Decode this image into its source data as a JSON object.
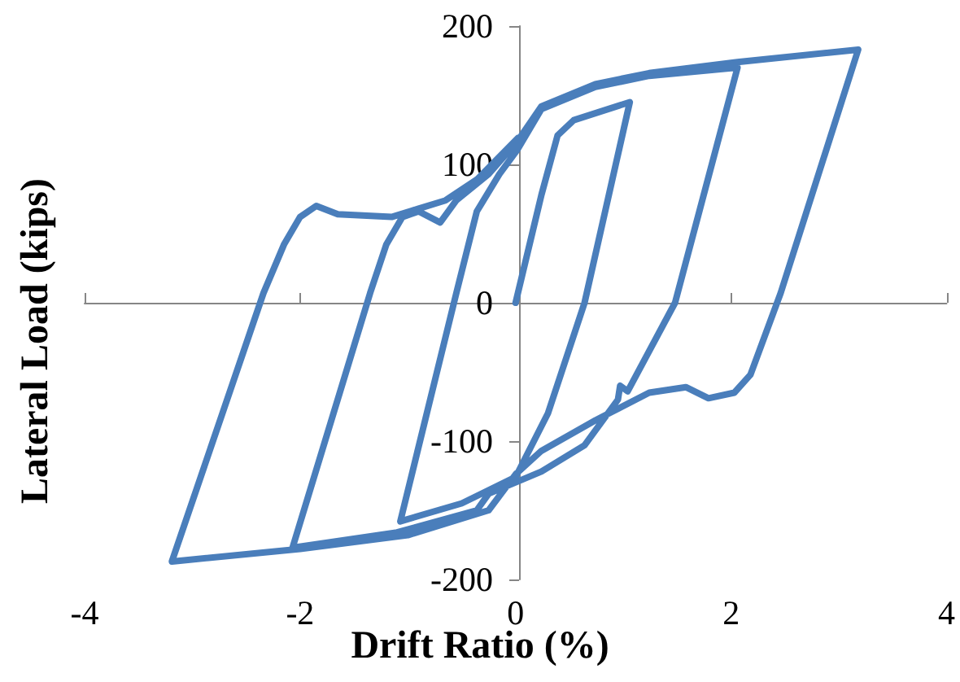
{
  "chart_data": {
    "type": "line",
    "xlabel": "Drift Ratio (%)",
    "ylabel": "Lateral Load (kips)",
    "xlim": [
      -4,
      4
    ],
    "xticks": [
      -4,
      -2,
      0,
      2,
      4
    ],
    "ylim": [
      -200,
      200
    ],
    "yticks": [
      -200,
      -100,
      0,
      100,
      200
    ],
    "marker": "none",
    "line_style": "solid",
    "series": [
      {
        "color": "#4a7ebb",
        "x": [
          0,
          0.24,
          0.39,
          0.54,
          1.06,
          0.64,
          0.3,
          0,
          -0.5,
          -1.07,
          -0.55,
          -0.36,
          -0.15,
          0.02,
          0.24,
          0.74,
          1.24,
          2.06,
          1.48,
          1.04,
          0.97,
          0.95,
          0.64,
          0.24,
          -0.25,
          -0.36,
          -1.1,
          -2.07,
          -1.35,
          -1.2,
          -1.05,
          -0.9,
          -0.7,
          -0.55,
          -0.25,
          0.02,
          0.24,
          0.74,
          1.24,
          2.06,
          3.18,
          2.46,
          2.18,
          2.03,
          1.79,
          1.58,
          1.24,
          0.74,
          0.24,
          0,
          -0.25,
          -1,
          -2,
          -3.19,
          -2.34,
          -2.15,
          -2,
          -1.85,
          -1.65,
          -1.15,
          -0.9,
          -0.65,
          -0.36,
          0.02
        ],
        "values": [
          0,
          78,
          121,
          132,
          145,
          0,
          -80,
          -126,
          -145,
          -158,
          7,
          66,
          93,
          111,
          140,
          156,
          164,
          170,
          0,
          -64,
          -60,
          -70,
          -103,
          -122,
          -138,
          -150,
          -166,
          -177,
          7,
          42,
          62,
          66,
          58,
          74,
          93,
          117,
          142,
          158,
          166,
          174,
          183,
          7,
          -52,
          -65,
          -69,
          -61,
          -65,
          -85,
          -107,
          -124,
          -150,
          -168,
          -178,
          -187,
          7,
          42,
          62,
          70,
          64,
          62,
          68,
          74,
          89,
          119
        ]
      }
    ]
  }
}
